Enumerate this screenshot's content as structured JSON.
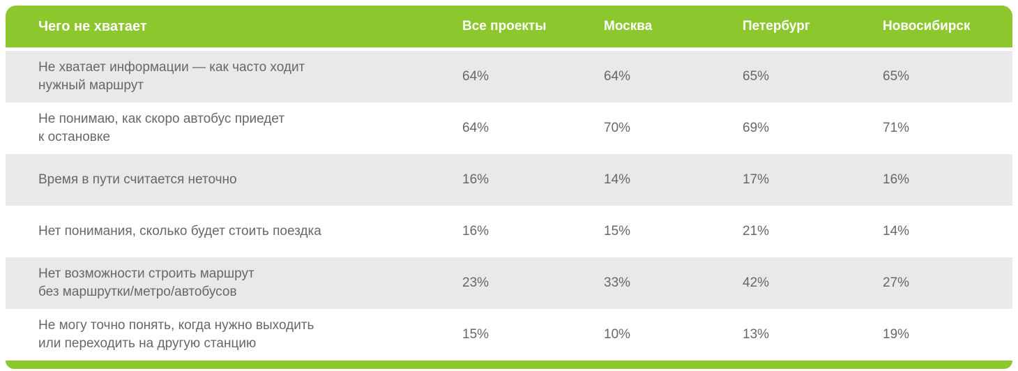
{
  "colors": {
    "accent_green": "#8dc72e",
    "row_gray": "#e9e9e9",
    "header_text": "#ffffff",
    "body_text": "#666769"
  },
  "table": {
    "header_label": "Чего не хватает",
    "columns": [
      "Все проекты",
      "Москва",
      "Петербург",
      "Новосибирск"
    ],
    "rows": [
      {
        "label": "Не хватает информации — как часто ходит\nнужный маршрут",
        "values": [
          "64%",
          "64%",
          "65%",
          "65%"
        ]
      },
      {
        "label": "Не понимаю, как скоро автобус приедет\nк остановке",
        "values": [
          "64%",
          "70%",
          "69%",
          "71%"
        ]
      },
      {
        "label": "Время в пути считается неточно",
        "values": [
          "16%",
          "14%",
          "17%",
          "16%"
        ]
      },
      {
        "label": "Нет понимания, сколько будет стоить поездка",
        "values": [
          "16%",
          "15%",
          "21%",
          "14%"
        ]
      },
      {
        "label": "Нет возможности строить маршрут\nбез маршрутки/метро/автобусов",
        "values": [
          "23%",
          "33%",
          "42%",
          "27%"
        ]
      },
      {
        "label": "Не могу точно понять, когда нужно выходить\nили переходить на другую станцию",
        "values": [
          "15%",
          "10%",
          "13%",
          "19%"
        ]
      }
    ]
  },
  "chart_data": {
    "type": "table",
    "title": "Чего не хватает",
    "columns": [
      "Все проекты",
      "Москва",
      "Петербург",
      "Новосибирск"
    ],
    "unit": "%",
    "rows": [
      {
        "label": "Не хватает информации — как часто ходит нужный маршрут",
        "values": [
          64,
          64,
          65,
          65
        ]
      },
      {
        "label": "Не понимаю, как скоро автобус приедет к остановке",
        "values": [
          64,
          70,
          69,
          71
        ]
      },
      {
        "label": "Время в пути считается неточно",
        "values": [
          16,
          14,
          17,
          16
        ]
      },
      {
        "label": "Нет понимания, сколько будет стоить поездка",
        "values": [
          16,
          15,
          21,
          14
        ]
      },
      {
        "label": "Нет возможности строить маршрут без маршрутки/метро/автобусов",
        "values": [
          23,
          33,
          42,
          27
        ]
      },
      {
        "label": "Не могу точно понять, когда нужно выходить или переходить на другую станцию",
        "values": [
          15,
          10,
          13,
          19
        ]
      }
    ]
  }
}
